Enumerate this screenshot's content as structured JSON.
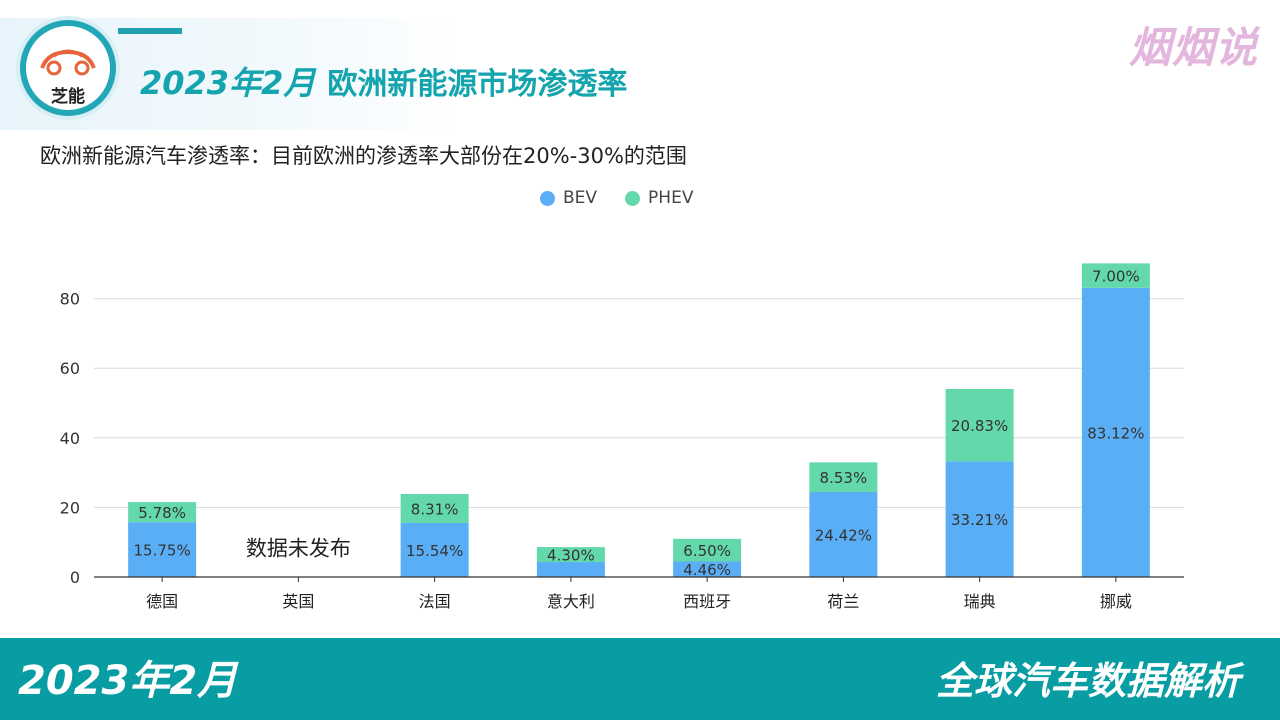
{
  "header": {
    "logo_text": "芝能",
    "title_date": "2023年2月",
    "title_text": "欧洲新能源市场渗透率",
    "brand": "烟烟说",
    "subtitle": "欧洲新能源汽车渗透率：目前欧洲的渗透率大部份在20%-30%的范围"
  },
  "footer": {
    "left": "2023年2月",
    "right": "全球汽车数据解析"
  },
  "colors": {
    "bev": "#5aaef5",
    "phev": "#63d9ab",
    "accent": "#13a4ad"
  },
  "chart_data": {
    "type": "bar",
    "stacked": true,
    "categories": [
      "德国",
      "英国",
      "法国",
      "意大利",
      "西班牙",
      "荷兰",
      "瑞典",
      "挪威"
    ],
    "series": [
      {
        "name": "BEV",
        "values": [
          15.75,
          null,
          15.54,
          4.3,
          4.46,
          24.42,
          33.21,
          83.12
        ],
        "labels": [
          "15.75%",
          "",
          "15.54%",
          "",
          "4.46%",
          "24.42%",
          "33.21%",
          "83.12%"
        ]
      },
      {
        "name": "PHEV",
        "values": [
          5.78,
          null,
          8.31,
          4.3,
          6.5,
          8.53,
          20.83,
          7.0
        ],
        "labels": [
          "5.78%",
          "",
          "8.31%",
          "4.30%",
          "6.50%",
          "8.53%",
          "20.83%",
          "7.00%"
        ]
      }
    ],
    "yticks": [
      0,
      20,
      40,
      60,
      80
    ],
    "ylim": [
      0,
      90
    ],
    "legend": "top-center",
    "grid": true,
    "annotations": [
      {
        "category": "英国",
        "text": "数据未发布"
      }
    ]
  }
}
